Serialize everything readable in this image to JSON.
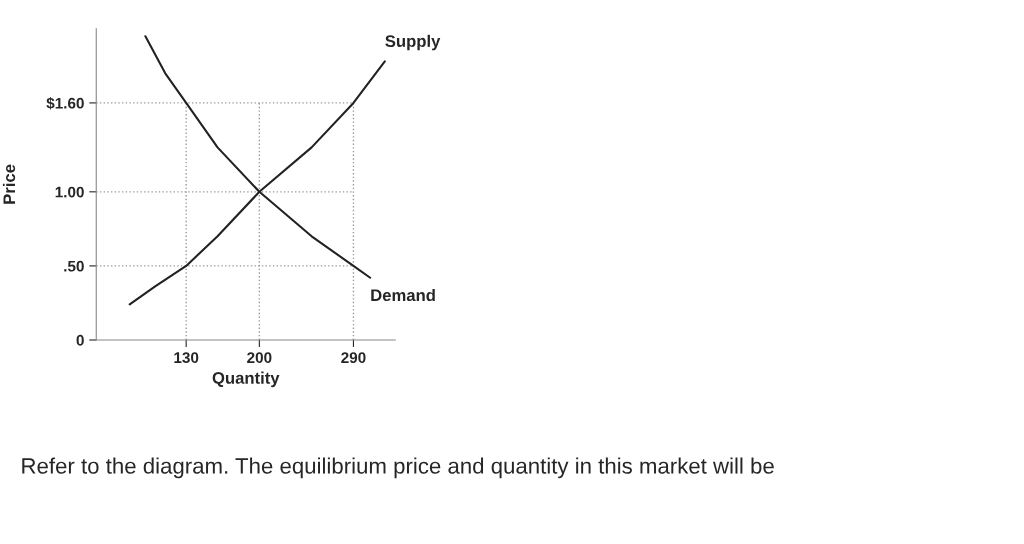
{
  "chart_data": {
    "type": "line",
    "xlabel": "Quantity",
    "ylabel": "Price",
    "series": [
      {
        "name": "Supply",
        "color": "#222222",
        "x": [
          76,
          100,
          130,
          160,
          200,
          250,
          290,
          320
        ],
        "values": [
          0.24,
          0.36,
          0.5,
          0.7,
          1.0,
          1.3,
          1.6,
          1.88
        ]
      },
      {
        "name": "Demand",
        "color": "#222222",
        "x": [
          91,
          110,
          130,
          160,
          200,
          250,
          290,
          306
        ],
        "values": [
          2.05,
          1.8,
          1.6,
          1.3,
          1.0,
          0.7,
          0.5,
          0.42
        ]
      }
    ],
    "xlim": [
      44,
      330
    ],
    "ylim": [
      0,
      2.1
    ],
    "xticks": [
      130,
      200,
      290
    ],
    "yticks": [
      {
        "value": 0,
        "label": "0"
      },
      {
        "value": 0.5,
        "label": ".50"
      },
      {
        "value": 1.0,
        "label": "1.00"
      },
      {
        "value": 1.6,
        "label": "$1.60"
      }
    ],
    "ref_lines": [
      {
        "axis": "y",
        "value": 1.6,
        "line_style": "dotted",
        "color": "#999999"
      },
      {
        "axis": "y",
        "value": 1.0,
        "line_style": "dotted",
        "color": "#999999"
      },
      {
        "axis": "y",
        "value": 0.5,
        "line_style": "dotted",
        "color": "#999999"
      },
      {
        "axis": "x",
        "value": 130,
        "line_style": "dotted",
        "color": "#999999"
      },
      {
        "axis": "x",
        "value": 200,
        "line_style": "dotted",
        "color": "#999999"
      },
      {
        "axis": "x",
        "value": 290,
        "line_style": "dotted",
        "color": "#999999"
      }
    ],
    "annotations": [
      "Refer to the diagram. The equilibrium price and quantity in this market will be"
    ],
    "grid": false,
    "legend": false
  }
}
